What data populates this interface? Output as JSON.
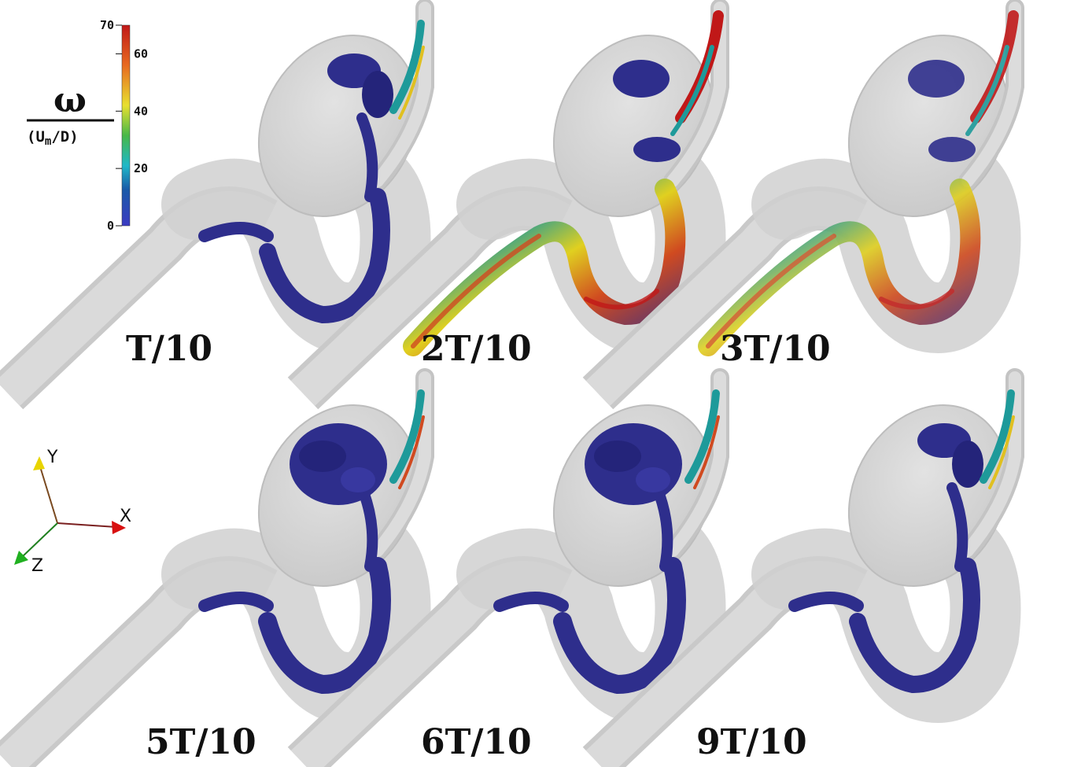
{
  "colorbar": {
    "symbol": "ω",
    "denominator": "(U",
    "denominator_sub": "m",
    "denominator_end": "/D)",
    "ticks": [
      "70",
      "60",
      "40",
      "20",
      "0"
    ],
    "tick_values": [
      70,
      60,
      40,
      20,
      0
    ],
    "range": [
      0,
      70
    ],
    "colors": [
      "#3b3bc2",
      "#1a5aa8",
      "#20b8c8",
      "#48b848",
      "#e8e030",
      "#e86a20",
      "#c01818"
    ]
  },
  "axes_triad": {
    "y_label": "Y",
    "x_label": "X",
    "z_label": "Z",
    "colors": {
      "y": "#e8d400",
      "x": "#d81010",
      "z": "#20b020"
    }
  },
  "panels": [
    {
      "label": "T/10"
    },
    {
      "label": "2T/10"
    },
    {
      "label": "3T/10"
    },
    {
      "label": "5T/10"
    },
    {
      "label": "6T/10"
    },
    {
      "label": "9T/10"
    }
  ],
  "colors": {
    "vessel_fill": "#d4d4d4",
    "vessel_wall": "#b8b8b8",
    "vortex_main": "#2e2e8c",
    "vortex_dark": "#1e1e60"
  }
}
